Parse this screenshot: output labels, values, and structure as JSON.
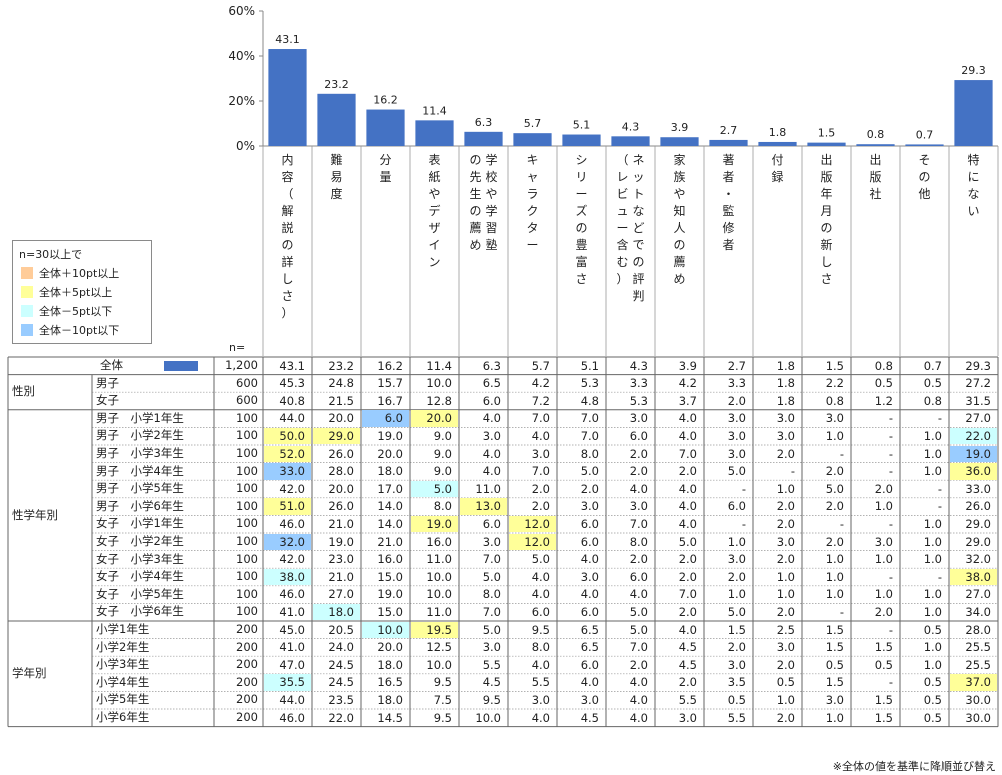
{
  "chart_data": {
    "type": "bar",
    "yticks": [
      "0%",
      "20%",
      "40%",
      "60%"
    ],
    "ylim": [
      0,
      60
    ],
    "categories": [
      "内容（解説の詳しさ）",
      "難易度",
      "分量",
      "表紙やデザイン",
      "学校や学習塾の先生の薦め",
      "キャラクター",
      "シリーズの豊富さ",
      "ネットなどでの評判（レビュー含む）",
      "家族や知人の薦め",
      "著者・監修者",
      "付録",
      "出版年月の新しさ",
      "出版社",
      "その他",
      "特にない"
    ],
    "values": [
      43.1,
      23.2,
      16.2,
      11.4,
      6.3,
      5.7,
      5.1,
      4.3,
      3.9,
      2.7,
      1.8,
      1.5,
      0.8,
      0.7,
      29.3
    ],
    "value_labels": [
      "43.1",
      "23.2",
      "16.2",
      "11.4",
      "6.3",
      "5.7",
      "5.1",
      "4.3",
      "3.9",
      "2.7",
      "1.8",
      "1.5",
      "0.8",
      "0.7",
      "29.3"
    ],
    "bar_color": "#4472c4"
  },
  "legend": {
    "title": "n=30以上で",
    "items": [
      {
        "label": "全体＋10pt以上",
        "color": "#ffcc99"
      },
      {
        "label": "全体＋5pt以上",
        "color": "#ffff99"
      },
      {
        "label": "全体－5pt以下",
        "color": "#ccffff"
      },
      {
        "label": "全体－10pt以下",
        "color": "#99ccff"
      }
    ]
  },
  "n_label": "n=",
  "table": {
    "rows": [
      {
        "group": "",
        "label": "全体",
        "n": "1,200",
        "vals": [
          "43.1",
          "23.2",
          "16.2",
          "11.4",
          "6.3",
          "5.7",
          "5.1",
          "4.3",
          "3.9",
          "2.7",
          "1.8",
          "1.5",
          "0.8",
          "0.7",
          "29.3"
        ],
        "hl": {}
      },
      {
        "group": "性別",
        "label": "男子",
        "n": "600",
        "vals": [
          "45.3",
          "24.8",
          "15.7",
          "10.0",
          "6.5",
          "4.2",
          "5.3",
          "3.3",
          "4.2",
          "3.3",
          "1.8",
          "2.2",
          "0.5",
          "0.5",
          "27.2"
        ],
        "hl": {}
      },
      {
        "group": "",
        "label": "女子",
        "n": "600",
        "vals": [
          "40.8",
          "21.5",
          "16.7",
          "12.8",
          "6.0",
          "7.2",
          "4.8",
          "5.3",
          "3.7",
          "2.0",
          "1.8",
          "0.8",
          "1.2",
          "0.8",
          "31.5"
        ],
        "hl": {}
      },
      {
        "group": "性学年別",
        "label": "男子　小学1年生",
        "n": "100",
        "vals": [
          "44.0",
          "20.0",
          "6.0",
          "20.0",
          "4.0",
          "7.0",
          "7.0",
          "3.0",
          "4.0",
          "3.0",
          "3.0",
          "3.0",
          "-",
          "-",
          "27.0"
        ],
        "hl": {
          "2": "b",
          "3": "y"
        }
      },
      {
        "group": "",
        "label": "男子　小学2年生",
        "n": "100",
        "vals": [
          "50.0",
          "29.0",
          "19.0",
          "9.0",
          "3.0",
          "4.0",
          "7.0",
          "6.0",
          "4.0",
          "3.0",
          "3.0",
          "1.0",
          "-",
          "1.0",
          "22.0"
        ],
        "hl": {
          "0": "y",
          "1": "y",
          "14": "c"
        }
      },
      {
        "group": "",
        "label": "男子　小学3年生",
        "n": "100",
        "vals": [
          "52.0",
          "26.0",
          "20.0",
          "9.0",
          "4.0",
          "3.0",
          "8.0",
          "2.0",
          "7.0",
          "3.0",
          "2.0",
          "-",
          "-",
          "1.0",
          "19.0"
        ],
        "hl": {
          "0": "y",
          "14": "b"
        }
      },
      {
        "group": "",
        "label": "男子　小学4年生",
        "n": "100",
        "vals": [
          "33.0",
          "28.0",
          "18.0",
          "9.0",
          "4.0",
          "7.0",
          "5.0",
          "2.0",
          "2.0",
          "5.0",
          "-",
          "2.0",
          "-",
          "1.0",
          "36.0"
        ],
        "hl": {
          "0": "b",
          "14": "y"
        }
      },
      {
        "group": "",
        "label": "男子　小学5年生",
        "n": "100",
        "vals": [
          "42.0",
          "20.0",
          "17.0",
          "5.0",
          "11.0",
          "2.0",
          "2.0",
          "4.0",
          "4.0",
          "-",
          "1.0",
          "5.0",
          "2.0",
          "-",
          "33.0"
        ],
        "hl": {
          "3": "c"
        }
      },
      {
        "group": "",
        "label": "男子　小学6年生",
        "n": "100",
        "vals": [
          "51.0",
          "26.0",
          "14.0",
          "8.0",
          "13.0",
          "2.0",
          "3.0",
          "3.0",
          "4.0",
          "6.0",
          "2.0",
          "2.0",
          "1.0",
          "-",
          "26.0"
        ],
        "hl": {
          "0": "y",
          "4": "y"
        }
      },
      {
        "group": "",
        "label": "女子　小学1年生",
        "n": "100",
        "vals": [
          "46.0",
          "21.0",
          "14.0",
          "19.0",
          "6.0",
          "12.0",
          "6.0",
          "7.0",
          "4.0",
          "-",
          "2.0",
          "-",
          "-",
          "1.0",
          "29.0"
        ],
        "hl": {
          "3": "y",
          "5": "y"
        }
      },
      {
        "group": "",
        "label": "女子　小学2年生",
        "n": "100",
        "vals": [
          "32.0",
          "19.0",
          "21.0",
          "16.0",
          "3.0",
          "12.0",
          "6.0",
          "8.0",
          "5.0",
          "1.0",
          "3.0",
          "2.0",
          "3.0",
          "1.0",
          "29.0"
        ],
        "hl": {
          "0": "b",
          "5": "y"
        }
      },
      {
        "group": "",
        "label": "女子　小学3年生",
        "n": "100",
        "vals": [
          "42.0",
          "23.0",
          "16.0",
          "11.0",
          "7.0",
          "5.0",
          "4.0",
          "2.0",
          "2.0",
          "3.0",
          "2.0",
          "1.0",
          "1.0",
          "1.0",
          "32.0"
        ],
        "hl": {}
      },
      {
        "group": "",
        "label": "女子　小学4年生",
        "n": "100",
        "vals": [
          "38.0",
          "21.0",
          "15.0",
          "10.0",
          "5.0",
          "4.0",
          "3.0",
          "6.0",
          "2.0",
          "2.0",
          "1.0",
          "1.0",
          "-",
          "-",
          "38.0"
        ],
        "hl": {
          "0": "c",
          "14": "y"
        }
      },
      {
        "group": "",
        "label": "女子　小学5年生",
        "n": "100",
        "vals": [
          "46.0",
          "27.0",
          "19.0",
          "10.0",
          "8.0",
          "4.0",
          "4.0",
          "4.0",
          "7.0",
          "1.0",
          "1.0",
          "1.0",
          "1.0",
          "1.0",
          "27.0"
        ],
        "hl": {}
      },
      {
        "group": "",
        "label": "女子　小学6年生",
        "n": "100",
        "vals": [
          "41.0",
          "18.0",
          "15.0",
          "11.0",
          "7.0",
          "6.0",
          "6.0",
          "5.0",
          "2.0",
          "5.0",
          "2.0",
          "-",
          "2.0",
          "1.0",
          "34.0"
        ],
        "hl": {
          "1": "c"
        }
      },
      {
        "group": "学年別",
        "label": "小学1年生",
        "n": "200",
        "vals": [
          "45.0",
          "20.5",
          "10.0",
          "19.5",
          "5.0",
          "9.5",
          "6.5",
          "5.0",
          "4.0",
          "1.5",
          "2.5",
          "1.5",
          "-",
          "0.5",
          "28.0"
        ],
        "hl": {
          "2": "c",
          "3": "y"
        }
      },
      {
        "group": "",
        "label": "小学2年生",
        "n": "200",
        "vals": [
          "41.0",
          "24.0",
          "20.0",
          "12.5",
          "3.0",
          "8.0",
          "6.5",
          "7.0",
          "4.5",
          "2.0",
          "3.0",
          "1.5",
          "1.5",
          "1.0",
          "25.5"
        ],
        "hl": {}
      },
      {
        "group": "",
        "label": "小学3年生",
        "n": "200",
        "vals": [
          "47.0",
          "24.5",
          "18.0",
          "10.0",
          "5.5",
          "4.0",
          "6.0",
          "2.0",
          "4.5",
          "3.0",
          "2.0",
          "0.5",
          "0.5",
          "1.0",
          "25.5"
        ],
        "hl": {}
      },
      {
        "group": "",
        "label": "小学4年生",
        "n": "200",
        "vals": [
          "35.5",
          "24.5",
          "16.5",
          "9.5",
          "4.5",
          "5.5",
          "4.0",
          "4.0",
          "2.0",
          "3.5",
          "0.5",
          "1.5",
          "-",
          "0.5",
          "37.0"
        ],
        "hl": {
          "0": "c",
          "14": "y"
        }
      },
      {
        "group": "",
        "label": "小学5年生",
        "n": "200",
        "vals": [
          "44.0",
          "23.5",
          "18.0",
          "7.5",
          "9.5",
          "3.0",
          "3.0",
          "4.0",
          "5.5",
          "0.5",
          "1.0",
          "3.0",
          "1.5",
          "0.5",
          "30.0"
        ],
        "hl": {}
      },
      {
        "group": "",
        "label": "小学6年生",
        "n": "200",
        "vals": [
          "46.0",
          "22.0",
          "14.5",
          "9.5",
          "10.0",
          "4.0",
          "4.5",
          "4.0",
          "3.0",
          "5.5",
          "2.0",
          "1.0",
          "1.5",
          "0.5",
          "30.0"
        ],
        "hl": {}
      }
    ]
  },
  "footer_note": "※全体の値を基準に降順並び替え"
}
